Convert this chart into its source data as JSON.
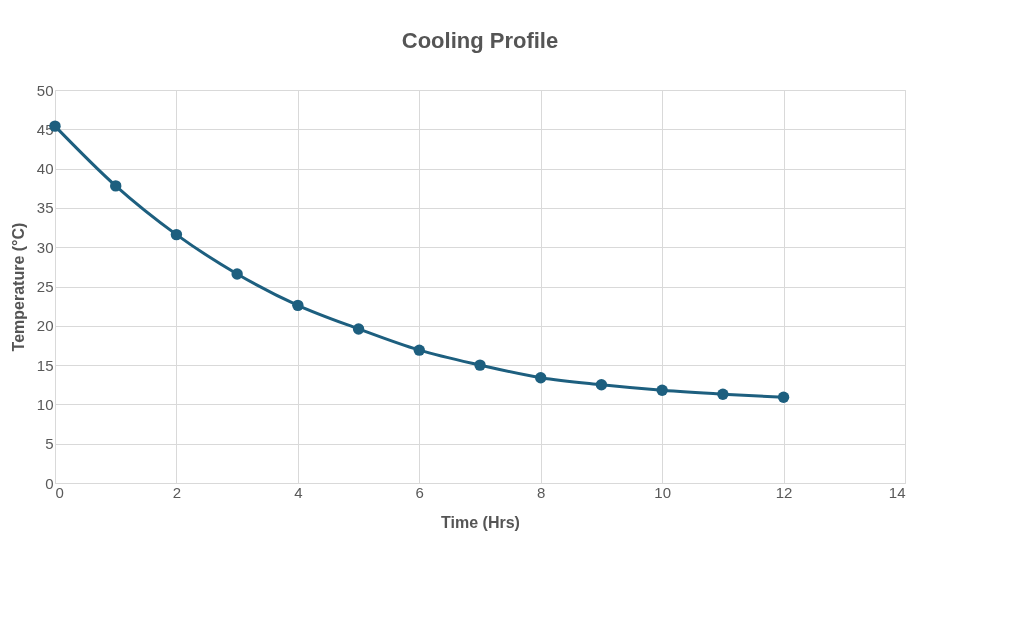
{
  "chart_data": {
    "type": "line",
    "title": "Cooling Profile",
    "xlabel": "Time (Hrs)",
    "ylabel": "Temperature (°C)",
    "x": [
      0,
      1,
      2,
      3,
      4,
      5,
      6,
      7,
      8,
      9,
      10,
      11,
      12
    ],
    "series": [
      {
        "color": "#1d5f7f",
        "values": [
          45.4,
          37.8,
          31.6,
          26.6,
          22.6,
          19.6,
          16.9,
          15.0,
          13.4,
          12.5,
          11.8,
          11.3,
          10.9
        ]
      }
    ],
    "xlim": [
      0,
      14
    ],
    "xticks": [
      0,
      2,
      4,
      6,
      8,
      10,
      12,
      14
    ],
    "ylim": [
      0,
      50
    ],
    "yticks": [
      0,
      5,
      10,
      15,
      20,
      25,
      30,
      35,
      40,
      45,
      50
    ],
    "grid": true,
    "marker": "circle",
    "line_style": "solid"
  }
}
